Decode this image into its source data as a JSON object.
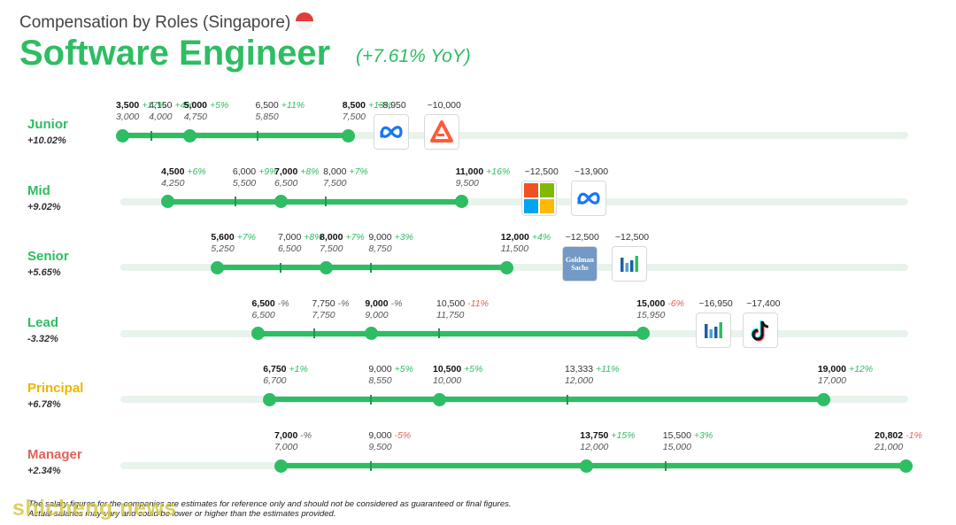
{
  "header": {
    "subtitle": "Compensation by Roles (Singapore)",
    "title": "Software Engineer",
    "yoy": "(+7.61% YoY)"
  },
  "footnote": {
    "line1": "The salary figures for the companies are estimates for reference only and should not be considered as guaranteed or final figures.",
    "line2": "Actual salaries may vary and could be lower or higher than the estimates provided."
  },
  "watermark": "shicheng.news",
  "colors": {
    "green": "#2ebd63",
    "track": "#e8f3ec",
    "principal": "#f0b400",
    "manager": "#e0635a",
    "down": "#e0635a"
  },
  "chart_data": {
    "type": "range",
    "unit": "SGD monthly",
    "axis_range": [
      2500,
      21500
    ],
    "roles": [
      {
        "name": "Junior",
        "change": "+10.02%",
        "color": "#2ebd63",
        "points": [
          {
            "cur": "3,500",
            "chg": "+17%",
            "prev": "3,000",
            "v": 3500,
            "main": true
          },
          {
            "cur": "4,150",
            "chg": "+4%",
            "prev": "4,000",
            "v": 4150,
            "main": false
          },
          {
            "cur": "5,000",
            "chg": "+5%",
            "prev": "4,750",
            "v": 5000,
            "main": true
          },
          {
            "cur": "6,500",
            "chg": "+11%",
            "prev": "5,850",
            "v": 6500,
            "main": false
          },
          {
            "cur": "8,500",
            "chg": "+13%",
            "prev": "7,500",
            "v": 8500,
            "main": true
          }
        ],
        "logos": [
          {
            "val": "~8,950",
            "icon": "meta-logo-icon",
            "v": 9450
          },
          {
            "val": "~10,000",
            "icon": "triangle-logo-icon",
            "v": 10550
          }
        ]
      },
      {
        "name": "Mid",
        "change": "+9.02%",
        "color": "#2ebd63",
        "points": [
          {
            "cur": "4,500",
            "chg": "+6%",
            "prev": "4,250",
            "v": 4500,
            "main": true
          },
          {
            "cur": "6,000",
            "chg": "+9%",
            "prev": "5,500",
            "v": 6000,
            "main": false
          },
          {
            "cur": "7,000",
            "chg": "+8%",
            "prev": "6,500",
            "v": 7000,
            "main": true
          },
          {
            "cur": "8,000",
            "chg": "+7%",
            "prev": "7,500",
            "v": 8000,
            "main": false
          },
          {
            "cur": "11,000",
            "chg": "+16%",
            "prev": "9,500",
            "v": 11000,
            "main": true
          }
        ],
        "logos": [
          {
            "val": "~12,500",
            "icon": "microsoft-logo-icon",
            "v": 12700
          },
          {
            "val": "~13,900",
            "icon": "meta-logo-icon",
            "v": 13800
          }
        ]
      },
      {
        "name": "Senior",
        "change": "+5.65%",
        "color": "#2ebd63",
        "points": [
          {
            "cur": "5,600",
            "chg": "+7%",
            "prev": "5,250",
            "v": 5600,
            "main": true
          },
          {
            "cur": "7,000",
            "chg": "+8%",
            "prev": "6,500",
            "v": 7000,
            "main": false
          },
          {
            "cur": "8,000",
            "chg": "+7%",
            "prev": "7,500",
            "v": 8000,
            "main": true
          },
          {
            "cur": "9,000",
            "chg": "+3%",
            "prev": "8,750",
            "v": 9000,
            "main": false
          },
          {
            "cur": "12,000",
            "chg": "+4%",
            "prev": "11,500",
            "v": 12000,
            "main": true
          }
        ],
        "logos": [
          {
            "val": "~12,500",
            "icon": "goldman-sachs-logo-icon",
            "v": 13600
          },
          {
            "val": "~12,500",
            "icon": "bars-logo-icon",
            "v": 14700
          }
        ]
      },
      {
        "name": "Lead",
        "change": "-3.32%",
        "color": "#2ebd63",
        "points": [
          {
            "cur": "6,500",
            "chg": "-%",
            "prev": "6,500",
            "v": 6500,
            "main": true
          },
          {
            "cur": "7,750",
            "chg": "-%",
            "prev": "7,750",
            "v": 7750,
            "main": false
          },
          {
            "cur": "9,000",
            "chg": "-%",
            "prev": "9,000",
            "v": 9000,
            "main": true
          },
          {
            "cur": "10,500",
            "chg": "-11%",
            "prev": "11,750",
            "v": 10500,
            "main": false
          },
          {
            "cur": "15,000",
            "chg": "-6%",
            "prev": "15,950",
            "v": 15000,
            "main": true
          }
        ],
        "logos": [
          {
            "val": "~16,950",
            "icon": "bars-logo-icon",
            "v": 16550
          },
          {
            "val": "~17,400",
            "icon": "tiktok-logo-icon",
            "v": 17600
          }
        ]
      },
      {
        "name": "Principal",
        "change": "+6.78%",
        "color": "#f0b400",
        "points": [
          {
            "cur": "6,750",
            "chg": "+1%",
            "prev": "6,700",
            "v": 6750,
            "main": true
          },
          {
            "cur": "9,000",
            "chg": "+5%",
            "prev": "8,550",
            "v": 9000,
            "main": false
          },
          {
            "cur": "10,500",
            "chg": "+5%",
            "prev": "10,000",
            "v": 10500,
            "main": true
          },
          {
            "cur": "13,333",
            "chg": "+11%",
            "prev": "12,000",
            "v": 13333,
            "main": false
          },
          {
            "cur": "19,000",
            "chg": "+12%",
            "prev": "17,000",
            "v": 19000,
            "main": true
          }
        ],
        "logos": []
      },
      {
        "name": "Manager",
        "change": "+2.34%",
        "color": "#e0635a",
        "points": [
          {
            "cur": "7,000",
            "chg": "-%",
            "prev": "7,000",
            "v": 7000,
            "main": true
          },
          {
            "cur": "9,000",
            "chg": "-5%",
            "prev": "9,500",
            "v": 9000,
            "main": false
          },
          {
            "cur": "13,750",
            "chg": "+15%",
            "prev": "12,000",
            "v": 13750,
            "main": true
          },
          {
            "cur": "15,500",
            "chg": "+3%",
            "prev": "15,000",
            "v": 15500,
            "main": false
          },
          {
            "cur": "20,802",
            "chg": "-1%",
            "prev": "21,000",
            "v": 20802,
            "main": true
          }
        ],
        "logos": []
      }
    ]
  }
}
